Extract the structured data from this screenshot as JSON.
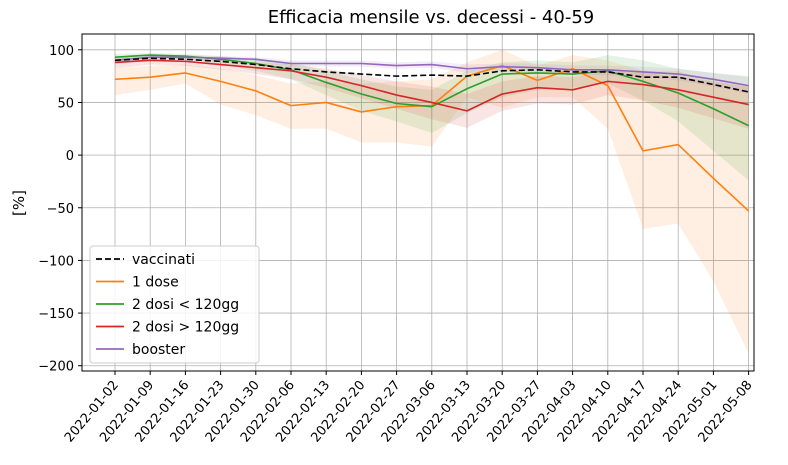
{
  "chart_data": {
    "type": "line",
    "title": "Efficacia mensile vs. decessi - 40-59",
    "xlabel": "",
    "ylabel": "[%]",
    "ylim": [
      -205,
      115
    ],
    "yticks": [
      100,
      50,
      0,
      -50,
      -100,
      -150,
      -200
    ],
    "ytick_labels": [
      "100",
      "50",
      "0",
      "−50",
      "−100",
      "−150",
      "−200"
    ],
    "grid": true,
    "legend_position": "lower-left",
    "categories": [
      "2022-01-02",
      "2022-01-09",
      "2022-01-16",
      "2022-01-23",
      "2022-01-30",
      "2022-02-06",
      "2022-02-13",
      "2022-02-20",
      "2022-02-27",
      "2022-03-06",
      "2022-03-13",
      "2022-03-20",
      "2022-03-27",
      "2022-04-03",
      "2022-04-10",
      "2022-04-17",
      "2022-04-24",
      "2022-05-01",
      "2022-05-08"
    ],
    "series": [
      {
        "name": "vaccinati",
        "color": "#000000",
        "dash": true,
        "values": [
          90,
          92,
          91,
          89,
          86,
          82,
          79,
          77,
          75,
          76,
          75,
          80,
          81,
          79,
          79,
          74,
          74,
          67,
          60
        ],
        "band_lower": null,
        "band_upper": null
      },
      {
        "name": "1 dose",
        "color": "#ff7f0e",
        "dash": false,
        "values": [
          72,
          74,
          78,
          70,
          61,
          47,
          50,
          41,
          46,
          47,
          75,
          85,
          71,
          82,
          66,
          4,
          10,
          -22,
          -53
        ],
        "band_lower": [
          57,
          62,
          68,
          48,
          38,
          25,
          25,
          12,
          12,
          8,
          55,
          45,
          55,
          55,
          25,
          -70,
          -65,
          -120,
          -188
        ],
        "band_upper": [
          82,
          85,
          86,
          82,
          76,
          68,
          70,
          68,
          70,
          72,
          88,
          100,
          85,
          95,
          90,
          80,
          80,
          70,
          65
        ]
      },
      {
        "name": "2 dosi < 120gg",
        "color": "#2ca02c",
        "dash": false,
        "values": [
          93,
          95,
          94,
          91,
          87,
          81,
          69,
          58,
          49,
          46,
          63,
          77,
          78,
          77,
          80,
          70,
          59,
          44,
          28
        ],
        "band_lower": [
          88,
          92,
          91,
          86,
          80,
          72,
          57,
          42,
          32,
          21,
          40,
          55,
          62,
          64,
          68,
          52,
          32,
          4,
          -24
        ],
        "band_upper": [
          96,
          97,
          96,
          94,
          91,
          88,
          80,
          72,
          65,
          62,
          80,
          88,
          90,
          88,
          95,
          90,
          82,
          78,
          75
        ]
      },
      {
        "name": "2 dosi > 120gg",
        "color": "#d62728",
        "dash": false,
        "values": [
          88,
          90,
          89,
          86,
          83,
          80,
          74,
          66,
          57,
          50,
          42,
          58,
          64,
          62,
          70,
          67,
          62,
          55,
          48
        ],
        "band_lower": [
          82,
          86,
          85,
          81,
          77,
          72,
          64,
          54,
          44,
          34,
          26,
          42,
          49,
          48,
          57,
          52,
          45,
          35,
          25
        ],
        "band_upper": [
          92,
          93,
          92,
          90,
          88,
          86,
          82,
          76,
          70,
          65,
          58,
          70,
          75,
          74,
          80,
          78,
          74,
          70,
          65
        ]
      },
      {
        "name": "booster",
        "color": "#9467bd",
        "dash": false,
        "values": [
          90,
          93,
          93,
          92,
          91,
          87,
          87,
          87,
          85,
          86,
          82,
          84,
          83,
          81,
          81,
          79,
          77,
          72,
          66
        ],
        "band_lower": [
          86,
          90,
          90,
          89,
          88,
          84,
          84,
          84,
          82,
          83,
          78,
          80,
          79,
          76,
          76,
          74,
          71,
          65,
          58
        ],
        "band_upper": [
          93,
          95,
          95,
          94,
          93,
          90,
          90,
          90,
          88,
          89,
          86,
          87,
          87,
          85,
          85,
          84,
          82,
          78,
          74
        ]
      }
    ]
  }
}
